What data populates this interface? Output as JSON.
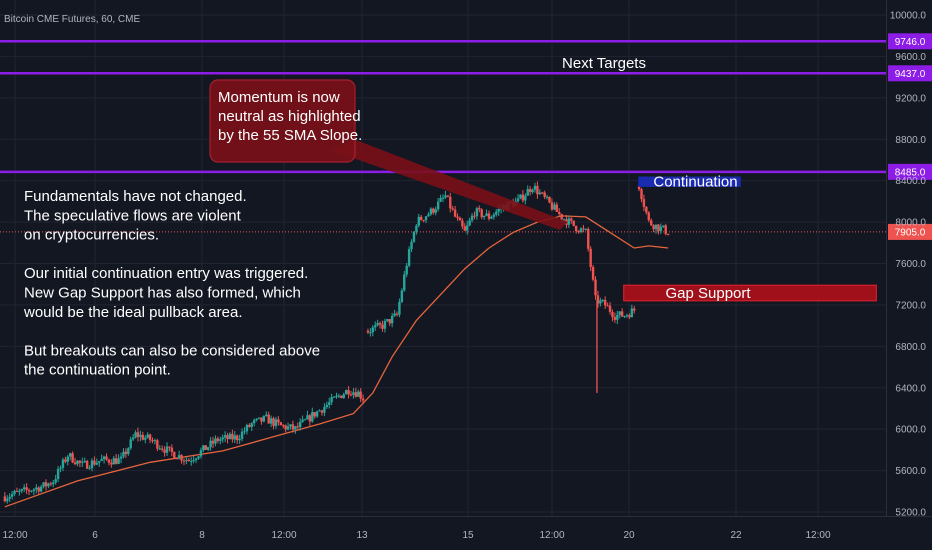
{
  "title": "Bitcoin CME Futures, 60, CME",
  "colors": {
    "background": "#131722",
    "grid": "#1f2431",
    "axis_text": "#b2b5be",
    "candle_up": "#26a69a",
    "candle_down": "#ef5350",
    "sma": "#e6643c",
    "target_line": "#8c1ce6",
    "current_price": "#ef5350",
    "gap_box_fill": "#a8101a",
    "continuation_fill": "#1a2bb0",
    "callout_fill": "#7a1018"
  },
  "chart_data": {
    "type": "candlestick",
    "title": "Bitcoin CME Futures, 60, CME",
    "symbol": "Bitcoin CME Futures",
    "interval": "60",
    "exchange": "CME",
    "y_scale": "linear",
    "ylim": [
      5200,
      10200
    ],
    "x_tick_labels": [
      "12:00",
      "6",
      "8",
      "12:00",
      "13",
      "15",
      "12:00",
      "20",
      "22",
      "12:00"
    ],
    "y_tick_labels": [
      "10000.0",
      "9600.0",
      "9200.0",
      "8800.0",
      "8400.0",
      "8000.0",
      "7600.0",
      "7200.0",
      "6800.0",
      "6400.0",
      "6000.0",
      "5600.0",
      "5200.0"
    ],
    "y_tick_values": [
      10000,
      9600,
      9200,
      8800,
      8400,
      8000,
      7600,
      7200,
      6800,
      6400,
      6000,
      5600,
      5200
    ],
    "grid": true,
    "path_points": [
      {
        "x": 0,
        "y": 5350
      },
      {
        "x": 4,
        "y": 5400
      },
      {
        "x": 8,
        "y": 5450
      },
      {
        "x": 10,
        "y": 5500
      },
      {
        "x": 13,
        "y": 5750
      },
      {
        "x": 16,
        "y": 5650
      },
      {
        "x": 20,
        "y": 5700
      },
      {
        "x": 24,
        "y": 5700
      },
      {
        "x": 27,
        "y": 5950
      },
      {
        "x": 30,
        "y": 5900
      },
      {
        "x": 34,
        "y": 5780
      },
      {
        "x": 38,
        "y": 5700
      },
      {
        "x": 41,
        "y": 5800
      },
      {
        "x": 44,
        "y": 5900
      },
      {
        "x": 48,
        "y": 5920
      },
      {
        "x": 51,
        "y": 6050
      },
      {
        "x": 54,
        "y": 6100
      },
      {
        "x": 57,
        "y": 6030
      },
      {
        "x": 60,
        "y": 6000
      },
      {
        "x": 64,
        "y": 6150
      },
      {
        "x": 67,
        "y": 6250
      },
      {
        "x": 69,
        "y": 6320
      },
      {
        "x": 71,
        "y": 6380
      },
      {
        "x": 73,
        "y": 6350
      },
      {
        "x": 74,
        "y": 6300
      },
      {
        "x": 75,
        "y": 6950
      },
      {
        "x": 78,
        "y": 7000
      },
      {
        "x": 81,
        "y": 7100
      },
      {
        "x": 83,
        "y": 7600
      },
      {
        "x": 85,
        "y": 8000
      },
      {
        "x": 88,
        "y": 8100
      },
      {
        "x": 91,
        "y": 8250
      },
      {
        "x": 93,
        "y": 8050
      },
      {
        "x": 95,
        "y": 7900
      },
      {
        "x": 97,
        "y": 8100
      },
      {
        "x": 100,
        "y": 8050
      },
      {
        "x": 103,
        "y": 8150
      },
      {
        "x": 106,
        "y": 8200
      },
      {
        "x": 109,
        "y": 8350
      },
      {
        "x": 112,
        "y": 8200
      },
      {
        "x": 115,
        "y": 8050
      },
      {
        "x": 118,
        "y": 7950
      },
      {
        "x": 120,
        "y": 7900
      },
      {
        "x": 122,
        "y": 7250
      },
      {
        "x": 124,
        "y": 7200
      },
      {
        "x": 126,
        "y": 7100
      },
      {
        "x": 128,
        "y": 7100
      },
      {
        "x": 130,
        "y": 7150
      },
      {
        "x": 131,
        "y": 8350
      },
      {
        "x": 133,
        "y": 8000
      },
      {
        "x": 135,
        "y": 7950
      },
      {
        "x": 137,
        "y": 7905
      }
    ],
    "sma_55": [
      {
        "x": 0,
        "y": 5250
      },
      {
        "x": 15,
        "y": 5500
      },
      {
        "x": 30,
        "y": 5680
      },
      {
        "x": 45,
        "y": 5790
      },
      {
        "x": 55,
        "y": 5920
      },
      {
        "x": 65,
        "y": 6050
      },
      {
        "x": 72,
        "y": 6150
      },
      {
        "x": 76,
        "y": 6350
      },
      {
        "x": 80,
        "y": 6700
      },
      {
        "x": 85,
        "y": 7050
      },
      {
        "x": 90,
        "y": 7300
      },
      {
        "x": 95,
        "y": 7550
      },
      {
        "x": 100,
        "y": 7750
      },
      {
        "x": 105,
        "y": 7900
      },
      {
        "x": 110,
        "y": 8000
      },
      {
        "x": 115,
        "y": 8060
      },
      {
        "x": 120,
        "y": 8050
      },
      {
        "x": 125,
        "y": 7900
      },
      {
        "x": 130,
        "y": 7750
      },
      {
        "x": 133,
        "y": 7770
      },
      {
        "x": 137,
        "y": 7750
      }
    ],
    "spikes": [
      {
        "x": 122.3,
        "low": 6350,
        "color": "down"
      }
    ],
    "x_range": [
      -1,
      182
    ],
    "horizontal_levels": [
      {
        "value": 9746.0,
        "label": "9746.0",
        "kind": "target"
      },
      {
        "value": 9437.0,
        "label": "9437.0",
        "kind": "target"
      },
      {
        "value": 8485.0,
        "label": "8485.0",
        "kind": "target"
      },
      {
        "value": 7905.0,
        "label": "7905.0",
        "kind": "current"
      }
    ],
    "gap_support_zone": {
      "label": "Gap Support",
      "low": 7240,
      "high": 7390,
      "x_start": 127,
      "x_end": 180
    },
    "continuation_box": {
      "label": "Continuation",
      "low": 8340,
      "high": 8440,
      "x_start": 130,
      "x_end": 152
    }
  },
  "annotations": {
    "next_targets": "Next Targets",
    "callout_lines": [
      "Momentum is now",
      "neutral as highlighted",
      "by the 55 SMA Slope."
    ],
    "notes": [
      "Fundamentals have not changed.",
      "The speculative flows are violent",
      "on cryptocurrencies.",
      "",
      "Our initial continuation entry was triggered.",
      "New Gap Support has also formed, which",
      "would be the ideal pullback area.",
      "",
      "But breakouts can also be considered above",
      "the continuation point."
    ]
  }
}
